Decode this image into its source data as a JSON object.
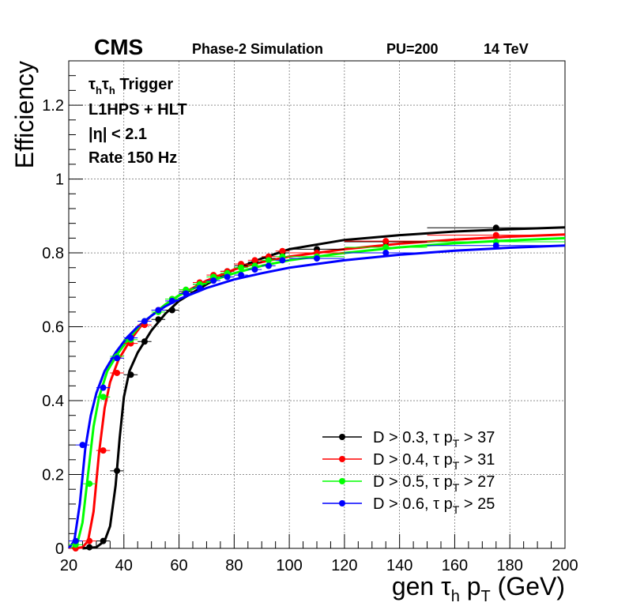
{
  "chart_data": {
    "type": "scatter",
    "header": {
      "experiment": "CMS",
      "subtitle": "Phase-2 Simulation",
      "pileup": "PU=200",
      "energy": "14 TeV"
    },
    "annotations": {
      "trigger_prefix": "τ",
      "trigger_sub1": "h",
      "trigger_mid": "τ",
      "trigger_sub2": "h",
      "trigger_suffix": " Trigger",
      "algo": "L1HPS + HLT",
      "eta": "|η| < 2.1",
      "rate": "Rate 150 Hz"
    },
    "xlabel": {
      "pre": "gen τ",
      "sub1": "h",
      "mid": " p",
      "sub2": "T",
      "post": " (GeV)"
    },
    "ylabel": "Efficiency",
    "xlim": [
      20,
      200
    ],
    "ylim": [
      0,
      1.32
    ],
    "xticks": [
      20,
      40,
      60,
      80,
      100,
      120,
      140,
      160,
      180,
      200
    ],
    "yticks": [
      0,
      0.2,
      0.4,
      0.6,
      0.8,
      1,
      1.2
    ],
    "ytick_labels": [
      "0",
      "0.2",
      "0.4",
      "0.6",
      "0.8",
      "1",
      "1.2"
    ],
    "grid": true,
    "legend_position": "bottom-right",
    "series": [
      {
        "name_pre": "D > 0.3, τ p",
        "name_sub": "T",
        "name_post": " > 37",
        "color": "#000000",
        "points": [
          [
            27.5,
            0.003,
            2.5
          ],
          [
            32.5,
            0.02,
            2.5
          ],
          [
            37.5,
            0.21,
            2.5
          ],
          [
            42.5,
            0.47,
            2.5
          ],
          [
            47.5,
            0.56,
            2.5
          ],
          [
            52.5,
            0.62,
            2.5
          ],
          [
            57.5,
            0.645,
            2.5
          ],
          [
            62.5,
            0.695,
            2.5
          ],
          [
            67.5,
            0.715,
            2.5
          ],
          [
            72.5,
            0.735,
            2.5
          ],
          [
            77.5,
            0.75,
            2.5
          ],
          [
            82.5,
            0.765,
            2.5
          ],
          [
            87.5,
            0.775,
            2.5
          ],
          [
            92.5,
            0.785,
            2.5
          ],
          [
            97.5,
            0.8,
            2.5
          ],
          [
            110,
            0.81,
            10
          ],
          [
            135,
            0.83,
            15
          ],
          [
            175,
            0.868,
            25
          ]
        ],
        "curve": [
          [
            25,
            0.0
          ],
          [
            30,
            0.003
          ],
          [
            33,
            0.02
          ],
          [
            35,
            0.06
          ],
          [
            37,
            0.17
          ],
          [
            38.5,
            0.3
          ],
          [
            40,
            0.41
          ],
          [
            42,
            0.48
          ],
          [
            45,
            0.53
          ],
          [
            50,
            0.59
          ],
          [
            55,
            0.635
          ],
          [
            60,
            0.67
          ],
          [
            70,
            0.715
          ],
          [
            80,
            0.755
          ],
          [
            90,
            0.785
          ],
          [
            100,
            0.81
          ],
          [
            120,
            0.835
          ],
          [
            140,
            0.848
          ],
          [
            160,
            0.858
          ],
          [
            180,
            0.864
          ],
          [
            200,
            0.869
          ]
        ]
      },
      {
        "name_pre": "D > 0.4, τ p",
        "name_sub": "T",
        "name_post": " > 31",
        "color": "#ff0000",
        "points": [
          [
            22.5,
            0.0,
            2.5
          ],
          [
            27.5,
            0.02,
            2.5
          ],
          [
            32.5,
            0.265,
            2.5
          ],
          [
            37.5,
            0.475,
            2.5
          ],
          [
            42.5,
            0.555,
            2.5
          ],
          [
            47.5,
            0.605,
            2.5
          ],
          [
            52.5,
            0.645,
            2.5
          ],
          [
            57.5,
            0.675,
            2.5
          ],
          [
            62.5,
            0.7,
            2.5
          ],
          [
            67.5,
            0.72,
            2.5
          ],
          [
            72.5,
            0.74,
            2.5
          ],
          [
            77.5,
            0.75,
            2.5
          ],
          [
            82.5,
            0.77,
            2.5
          ],
          [
            87.5,
            0.78,
            2.5
          ],
          [
            92.5,
            0.79,
            2.5
          ],
          [
            97.5,
            0.805,
            2.5
          ],
          [
            110,
            0.8,
            10
          ],
          [
            135,
            0.832,
            15
          ],
          [
            175,
            0.848,
            25
          ]
        ],
        "curve": [
          [
            22,
            0.0
          ],
          [
            25,
            0.003
          ],
          [
            27,
            0.02
          ],
          [
            29,
            0.1
          ],
          [
            31,
            0.26
          ],
          [
            33,
            0.38
          ],
          [
            35,
            0.45
          ],
          [
            38,
            0.51
          ],
          [
            42,
            0.56
          ],
          [
            46,
            0.6
          ],
          [
            50,
            0.63
          ],
          [
            55,
            0.66
          ],
          [
            60,
            0.685
          ],
          [
            70,
            0.725
          ],
          [
            80,
            0.755
          ],
          [
            90,
            0.775
          ],
          [
            100,
            0.79
          ],
          [
            120,
            0.81
          ],
          [
            140,
            0.825
          ],
          [
            160,
            0.836
          ],
          [
            180,
            0.844
          ],
          [
            200,
            0.85
          ]
        ]
      },
      {
        "name_pre": "D > 0.5, τ p",
        "name_sub": "T",
        "name_post": " > 27",
        "color": "#00ff00",
        "points": [
          [
            22.5,
            0.01,
            2.5
          ],
          [
            27.5,
            0.175,
            2.5
          ],
          [
            32.5,
            0.41,
            2.5
          ],
          [
            37.5,
            0.52,
            2.5
          ],
          [
            42.5,
            0.565,
            2.5
          ],
          [
            47.5,
            0.615,
            2.5
          ],
          [
            52.5,
            0.64,
            2.5
          ],
          [
            57.5,
            0.675,
            2.5
          ],
          [
            62.5,
            0.7,
            2.5
          ],
          [
            67.5,
            0.715,
            2.5
          ],
          [
            72.5,
            0.735,
            2.5
          ],
          [
            77.5,
            0.745,
            2.5
          ],
          [
            82.5,
            0.76,
            2.5
          ],
          [
            87.5,
            0.765,
            2.5
          ],
          [
            92.5,
            0.78,
            2.5
          ],
          [
            97.5,
            0.79,
            2.5
          ],
          [
            110,
            0.79,
            10
          ],
          [
            135,
            0.815,
            15
          ],
          [
            175,
            0.83,
            25
          ]
        ],
        "curve": [
          [
            21,
            0.0
          ],
          [
            23,
            0.01
          ],
          [
            25,
            0.07
          ],
          [
            27,
            0.2
          ],
          [
            29,
            0.33
          ],
          [
            31,
            0.41
          ],
          [
            34,
            0.48
          ],
          [
            38,
            0.53
          ],
          [
            42,
            0.57
          ],
          [
            46,
            0.605
          ],
          [
            50,
            0.63
          ],
          [
            55,
            0.66
          ],
          [
            60,
            0.685
          ],
          [
            70,
            0.72
          ],
          [
            80,
            0.745
          ],
          [
            90,
            0.765
          ],
          [
            100,
            0.78
          ],
          [
            120,
            0.8
          ],
          [
            140,
            0.815
          ],
          [
            160,
            0.826
          ],
          [
            180,
            0.834
          ],
          [
            200,
            0.84
          ]
        ]
      },
      {
        "name_pre": "D > 0.6, τ p",
        "name_sub": "T",
        "name_post": " > 25",
        "color": "#0000ff",
        "points": [
          [
            22.5,
            0.02,
            2.5
          ],
          [
            25,
            0.28,
            2.5
          ],
          [
            32.5,
            0.435,
            2.5
          ],
          [
            37.5,
            0.515,
            2.5
          ],
          [
            42.5,
            0.57,
            2.5
          ],
          [
            47.5,
            0.615,
            2.5
          ],
          [
            52.5,
            0.645,
            2.5
          ],
          [
            57.5,
            0.67,
            2.5
          ],
          [
            62.5,
            0.69,
            2.5
          ],
          [
            67.5,
            0.705,
            2.5
          ],
          [
            72.5,
            0.725,
            2.5
          ],
          [
            77.5,
            0.735,
            2.5
          ],
          [
            82.5,
            0.74,
            2.5
          ],
          [
            87.5,
            0.755,
            2.5
          ],
          [
            92.5,
            0.765,
            2.5
          ],
          [
            97.5,
            0.78,
            2.5
          ],
          [
            110,
            0.785,
            10
          ],
          [
            135,
            0.8,
            15
          ],
          [
            175,
            0.82,
            25
          ]
        ],
        "curve": [
          [
            20,
            0.0
          ],
          [
            22,
            0.02
          ],
          [
            24,
            0.12
          ],
          [
            26,
            0.27
          ],
          [
            28,
            0.36
          ],
          [
            30,
            0.42
          ],
          [
            33,
            0.48
          ],
          [
            37,
            0.53
          ],
          [
            41,
            0.57
          ],
          [
            45,
            0.6
          ],
          [
            50,
            0.63
          ],
          [
            55,
            0.655
          ],
          [
            60,
            0.675
          ],
          [
            70,
            0.705
          ],
          [
            80,
            0.728
          ],
          [
            90,
            0.745
          ],
          [
            100,
            0.76
          ],
          [
            120,
            0.78
          ],
          [
            140,
            0.795
          ],
          [
            160,
            0.806
          ],
          [
            180,
            0.814
          ],
          [
            200,
            0.82
          ]
        ]
      }
    ]
  }
}
